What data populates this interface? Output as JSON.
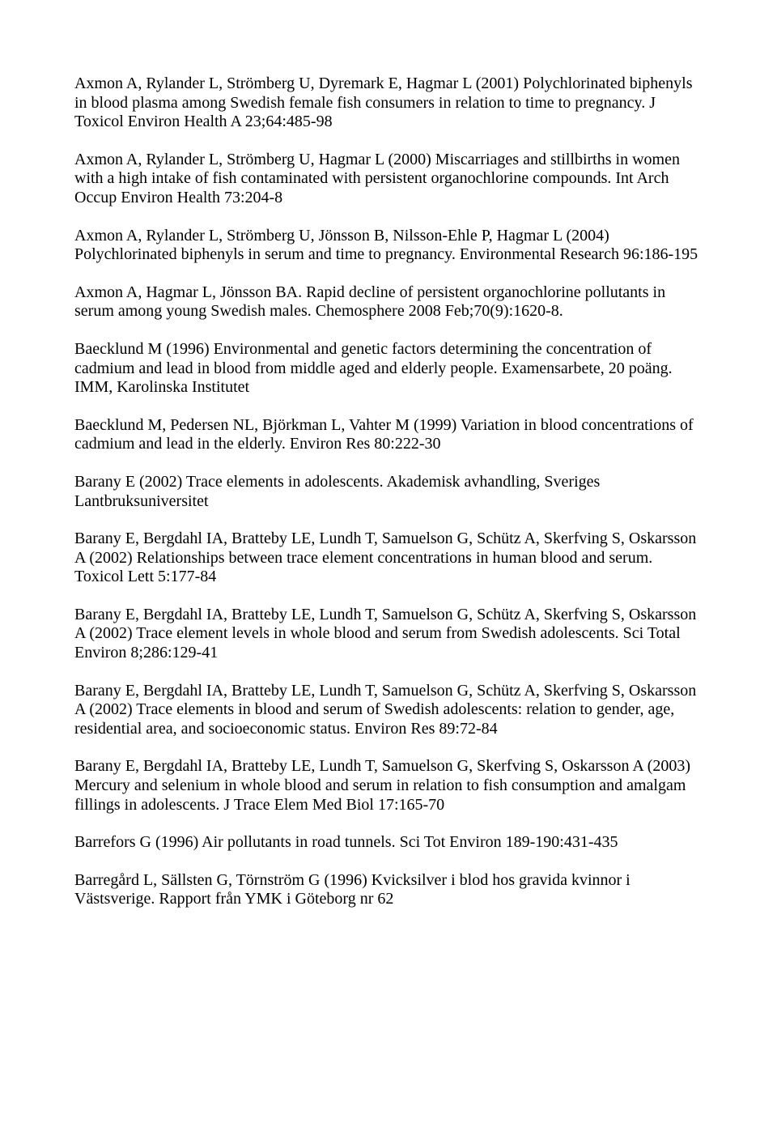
{
  "references": [
    "Axmon A, Rylander L, Strömberg U, Dyremark E, Hagmar L (2001) Polychlorinated biphenyls in blood plasma among Swedish female fish consumers in relation to time to pregnancy. J Toxicol Environ Health A 23;64:485-98",
    "Axmon A, Rylander L, Strömberg U, Hagmar L (2000) Miscarriages and stillbirths in women with a high intake of fish contaminated with persistent organochlorine compounds. Int Arch Occup Environ Health 73:204-8",
    "Axmon A, Rylander L, Strömberg U, Jönsson B, Nilsson-Ehle P, Hagmar L (2004) Polychlorinated biphenyls in serum and time to pregnancy. Environmental Research 96:186-195",
    "Axmon A, Hagmar L, Jönsson BA. Rapid decline of persistent organochlorine pollutants in serum among young Swedish males. Chemosphere 2008 Feb;70(9):1620-8.",
    "Baecklund M (1996) Environmental and genetic factors determining the concentration of cadmium and lead in blood from middle aged and elderly people. Examensarbete, 20 poäng. IMM, Karolinska Institutet",
    "Baecklund M, Pedersen NL, Björkman L, Vahter M (1999) Variation in blood concentrations of cadmium and lead in the elderly. Environ Res 80:222-30",
    "Barany E (2002) Trace elements in adolescents. Akademisk avhandling, Sveriges Lantbruksuniversitet",
    "Barany E, Bergdahl IA, Bratteby LE, Lundh T, Samuelson G, Schütz A, Skerfving S, Oskarsson A (2002) Relationships between trace element concentrations in human blood and serum. Toxicol Lett 5:177-84",
    "Barany E, Bergdahl IA, Bratteby LE, Lundh T, Samuelson G, Schütz A, Skerfving S, Oskarsson A (2002) Trace element levels in whole blood and serum from Swedish adolescents. Sci Total Environ 8;286:129-41",
    "Barany E, Bergdahl IA, Bratteby LE, Lundh T, Samuelson G, Schütz A, Skerfving S, Oskarsson A (2002) Trace elements in blood and serum of Swedish adolescents: relation to gender, age, residential area, and socioeconomic status. Environ Res 89:72-84",
    "Barany E, Bergdahl IA, Bratteby LE, Lundh T, Samuelson G, Skerfving S, Oskarsson A (2003) Mercury and selenium in whole blood and serum in relation to fish consumption and amalgam fillings in adolescents. J Trace Elem Med Biol 17:165-70",
    "Barrefors G (1996) Air pollutants in road tunnels. Sci Tot Environ 189-190:431-435",
    "Barregård L, Sällsten G, Törnström G (1996) Kvicksilver i blod hos gravida kvinnor i Västsverige. Rapport från YMK i Göteborg nr 62"
  ]
}
